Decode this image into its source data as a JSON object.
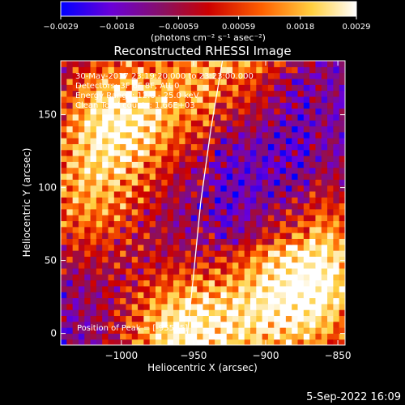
{
  "chart_data": {
    "type": "heatmap",
    "title": "Reconstructed RHESSI Image",
    "xlabel": "Heliocentric X (arcsec)",
    "ylabel": "Heliocentric Y (arcsec)",
    "xlim": [
      -1042,
      -845
    ],
    "ylim": [
      -8,
      187
    ],
    "x_ticks": [
      -1000,
      -950,
      -900,
      -850
    ],
    "x_tick_labels": [
      "−1000",
      "−950",
      "−900",
      "−850"
    ],
    "y_ticks": [
      0,
      50,
      100,
      150
    ],
    "y_tick_labels": [
      "0",
      "50",
      "100",
      "150"
    ],
    "colorbar": {
      "range": [
        -0.0029,
        0.0029
      ],
      "ticks": [
        -0.0029,
        -0.0018,
        -0.00059,
        0.00059,
        0.0018,
        0.0029
      ],
      "tick_labels": [
        "−0.0029",
        "−0.0018",
        "−0.00059",
        "0.00059",
        "0.0018",
        "0.0029"
      ],
      "units_label": "(photons cm⁻² s⁻¹ asec⁻²)",
      "colors": [
        "#0000ff",
        "#6a00d8",
        "#8a1060",
        "#cc0000",
        "#ff6000",
        "#ffd040",
        "#ffffff"
      ]
    },
    "annotations": [
      "30-May-2017 23:19:20.000 to 23:23:00.000",
      "Detectors: 3F 6F 8F, Att 0",
      "Energy Range: 12.0 - 25.0 keV",
      "Clean     Total counts: 1.66E+03"
    ],
    "peak_label": "Position of Peak = [-955,-5]",
    "bright_regions": [
      {
        "x": -1000,
        "y": 150,
        "level": 0.95
      },
      {
        "x": -955,
        "y": 0,
        "level": 1.0
      },
      {
        "x": -880,
        "y": 20,
        "level": 0.9
      },
      {
        "x": -925,
        "y": 180,
        "level": 0.7
      },
      {
        "x": -1025,
        "y": 90,
        "level": 0.6
      },
      {
        "x": -860,
        "y": 60,
        "level": 0.55
      }
    ],
    "limb_curve": [
      [
        -930,
        187
      ],
      [
        -938,
        140
      ],
      [
        -945,
        90
      ],
      [
        -950,
        40
      ],
      [
        -955,
        -8
      ]
    ],
    "grid": false
  },
  "footer": {
    "timestamp": "5-Sep-2022 16:09"
  }
}
